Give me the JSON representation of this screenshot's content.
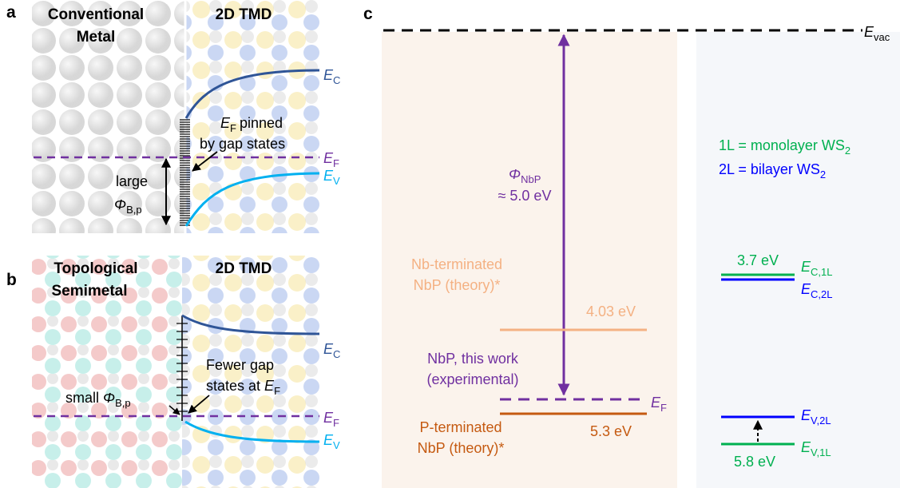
{
  "panel_a": {
    "label": "a",
    "left_title": [
      "Conventional",
      "Metal"
    ],
    "right_title": "2D TMD",
    "ec": {
      "base": "E",
      "sub": "C"
    },
    "ef": {
      "base": "E",
      "sub": "F"
    },
    "ev": {
      "base": "E",
      "sub": "V"
    },
    "pinned_note": {
      "symbol": "E",
      "sub": "F",
      "text1": "pinned",
      "text2": "by gap states"
    },
    "barrier": {
      "text": "large",
      "symbol": "Φ",
      "sub": "B,p"
    }
  },
  "panel_b": {
    "label": "b",
    "left_title": [
      "Topological",
      "Semimetal"
    ],
    "right_title": "2D TMD",
    "ec": {
      "base": "E",
      "sub": "C"
    },
    "ef": {
      "base": "E",
      "sub": "F"
    },
    "ev": {
      "base": "E",
      "sub": "V"
    },
    "gap_note": {
      "line1": "Fewer gap",
      "line2": "states at",
      "symbol": "E",
      "sub": "F"
    },
    "barrier": {
      "text": "small",
      "symbol": "Φ",
      "sub": "B,p"
    }
  },
  "panel_c": {
    "label": "c",
    "evac": {
      "base": "E",
      "sub": "vac"
    },
    "work_function": {
      "symbol": "Φ",
      "sub": "NbP",
      "value": "≈ 5.0 eV"
    },
    "nb_terminated": {
      "lines": [
        "Nb-terminated",
        "NbP (theory)*"
      ],
      "value": "4.03 eV"
    },
    "this_work": {
      "lines": [
        "NbP, this work",
        "(experimental)"
      ],
      "ef": {
        "base": "E",
        "sub": "F"
      }
    },
    "p_terminated": {
      "lines": [
        "P-terminated",
        "NbP (theory)*"
      ],
      "value": "5.3 eV"
    },
    "legend": [
      {
        "text": "1L = monolayer WS",
        "sub": "2"
      },
      {
        "text": "2L = bilayer WS",
        "sub": "2"
      }
    ],
    "ws2": {
      "ec_value": "3.7 eV",
      "ec_1l": {
        "base": "E",
        "sub": "C,1L"
      },
      "ec_2l": {
        "base": "E",
        "sub": "C,2L"
      },
      "ev_2l": {
        "base": "E",
        "sub": "V,2L"
      },
      "ev_1l": {
        "base": "E",
        "sub": "V,1L"
      },
      "ev_value": "5.8 eV"
    }
  }
}
